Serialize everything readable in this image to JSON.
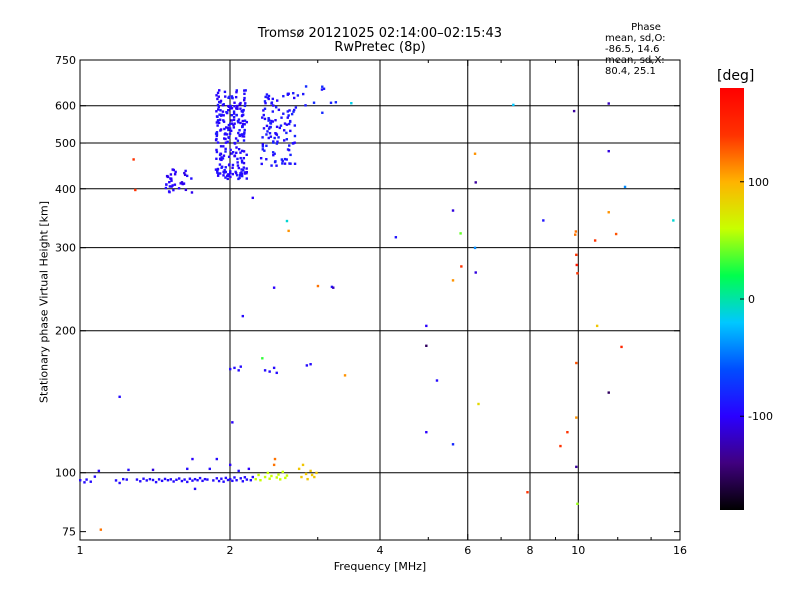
{
  "chart_data": {
    "type": "scatter",
    "title": "Tromsø 20121025 02:14:00–02:15:43",
    "subtitle": "RwPretec (8p)",
    "xlabel": "Frequency [MHz]",
    "ylabel": "Stationary phase Virtual Height [km]",
    "x_scale": "log",
    "y_scale": "log",
    "xlim": [
      1,
      16
    ],
    "ylim": [
      72,
      750
    ],
    "x_ticks": [
      1,
      2,
      4,
      6,
      8,
      10,
      16
    ],
    "x_minor_ticks": [
      3,
      5,
      7,
      9,
      12,
      14
    ],
    "y_ticks": [
      75,
      100,
      200,
      300,
      400,
      500,
      600,
      750
    ],
    "x_grid": [
      2,
      4,
      6,
      8,
      10
    ],
    "y_grid": [
      100,
      200,
      300,
      400,
      500,
      600
    ],
    "grid": true,
    "stats": {
      "heading": "Phase",
      "line1": "mean, sd,O: -86.5, 14.6",
      "line2": "mean, sd,X:  80.4, 25.1"
    },
    "colorbar": {
      "label": "[deg]",
      "range": [
        -180,
        180
      ],
      "ticks": [
        -100,
        0,
        100
      ],
      "colors": [
        "#000000",
        "#40007f",
        "#2a00ff",
        "#004dff",
        "#00c8ff",
        "#00ff4d",
        "#c8ff00",
        "#ffb300",
        "#ff3200",
        "#ff0000"
      ]
    },
    "points": [
      {
        "x": 1.0,
        "y": 96.5,
        "phase": -95
      },
      {
        "x": 1.02,
        "y": 95.5,
        "phase": -95
      },
      {
        "x": 1.03,
        "y": 96.8,
        "phase": -95
      },
      {
        "x": 1.05,
        "y": 95.8,
        "phase": -95
      },
      {
        "x": 1.07,
        "y": 98.2,
        "phase": -95
      },
      {
        "x": 1.09,
        "y": 101.0,
        "phase": -100
      },
      {
        "x": 1.1,
        "y": 75.8,
        "phase": 120
      },
      {
        "x": 1.18,
        "y": 96.4,
        "phase": -95
      },
      {
        "x": 1.2,
        "y": 95.2,
        "phase": -95
      },
      {
        "x": 1.22,
        "y": 97.0,
        "phase": -95
      },
      {
        "x": 1.24,
        "y": 96.8,
        "phase": -95
      },
      {
        "x": 1.2,
        "y": 145.0,
        "phase": -95
      },
      {
        "x": 1.25,
        "y": 101.5,
        "phase": -95
      },
      {
        "x": 1.28,
        "y": 462.0,
        "phase": 140
      },
      {
        "x": 1.29,
        "y": 398.0,
        "phase": 140
      },
      {
        "x": 1.3,
        "y": 96.8,
        "phase": -95
      },
      {
        "x": 1.32,
        "y": 96.0,
        "phase": -95
      },
      {
        "x": 1.34,
        "y": 97.2,
        "phase": -95
      },
      {
        "x": 1.36,
        "y": 96.4,
        "phase": -95
      },
      {
        "x": 1.38,
        "y": 97.0,
        "phase": -95
      },
      {
        "x": 1.4,
        "y": 96.6,
        "phase": -95
      },
      {
        "x": 1.4,
        "y": 101.5,
        "phase": -110
      },
      {
        "x": 1.42,
        "y": 95.6,
        "phase": -95
      },
      {
        "x": 1.44,
        "y": 96.9,
        "phase": -95
      },
      {
        "x": 1.46,
        "y": 96.2,
        "phase": -95
      },
      {
        "x": 1.48,
        "y": 97.1,
        "phase": -95
      },
      {
        "x": 1.5,
        "y": 96.5,
        "phase": -95
      },
      {
        "x": 1.52,
        "y": 96.9,
        "phase": -95
      },
      {
        "x": 1.54,
        "y": 95.9,
        "phase": -95
      },
      {
        "x": 1.56,
        "y": 96.7,
        "phase": -95
      },
      {
        "x": 1.58,
        "y": 97.3,
        "phase": -95
      },
      {
        "x": 1.6,
        "y": 96.1,
        "phase": -95
      },
      {
        "x": 1.62,
        "y": 96.8,
        "phase": -95
      },
      {
        "x": 1.64,
        "y": 95.7,
        "phase": -95
      },
      {
        "x": 1.64,
        "y": 102.0,
        "phase": -95
      },
      {
        "x": 1.66,
        "y": 97.2,
        "phase": -95
      },
      {
        "x": 1.68,
        "y": 96.3,
        "phase": -95
      },
      {
        "x": 1.68,
        "y": 107.0,
        "phase": -100
      },
      {
        "x": 1.7,
        "y": 97.0,
        "phase": -95
      },
      {
        "x": 1.7,
        "y": 92.5,
        "phase": -95
      },
      {
        "x": 1.72,
        "y": 96.5,
        "phase": -95
      },
      {
        "x": 1.74,
        "y": 97.5,
        "phase": -95
      },
      {
        "x": 1.76,
        "y": 96.2,
        "phase": -95
      },
      {
        "x": 1.78,
        "y": 97.0,
        "phase": -95
      },
      {
        "x": 1.8,
        "y": 96.8,
        "phase": -95
      },
      {
        "x": 1.82,
        "y": 102.0,
        "phase": -95
      },
      {
        "x": 1.85,
        "y": 96.4,
        "phase": -95
      },
      {
        "x": 1.88,
        "y": 97.4,
        "phase": -95
      },
      {
        "x": 1.88,
        "y": 107.0,
        "phase": -95
      },
      {
        "x": 1.9,
        "y": 96.1,
        "phase": -95
      },
      {
        "x": 1.92,
        "y": 97.2,
        "phase": -95
      },
      {
        "x": 1.94,
        "y": 95.8,
        "phase": -95
      },
      {
        "x": 1.96,
        "y": 97.6,
        "phase": -95
      },
      {
        "x": 1.98,
        "y": 96.6,
        "phase": -95
      },
      {
        "x": 2.0,
        "y": 97.0,
        "phase": -95
      },
      {
        "x": 2.0,
        "y": 104.0,
        "phase": -100
      },
      {
        "x": 2.02,
        "y": 96.2,
        "phase": -95
      },
      {
        "x": 2.04,
        "y": 97.8,
        "phase": -95
      },
      {
        "x": 2.06,
        "y": 96.5,
        "phase": -95
      },
      {
        "x": 2.08,
        "y": 101.0,
        "phase": -95
      },
      {
        "x": 2.1,
        "y": 97.4,
        "phase": -95
      },
      {
        "x": 2.12,
        "y": 96.0,
        "phase": -95
      },
      {
        "x": 2.14,
        "y": 97.9,
        "phase": -95
      },
      {
        "x": 2.16,
        "y": 96.8,
        "phase": -95
      },
      {
        "x": 2.18,
        "y": 102.0,
        "phase": -100
      },
      {
        "x": 2.2,
        "y": 96.5,
        "phase": -95
      },
      {
        "x": 2.22,
        "y": 98.0,
        "phase": -95
      },
      {
        "x": 2.02,
        "y": 128.0,
        "phase": -100
      },
      {
        "x": 2.0,
        "y": 166.0,
        "phase": -95
      },
      {
        "x": 2.04,
        "y": 167.0,
        "phase": -95
      },
      {
        "x": 2.08,
        "y": 165.0,
        "phase": -95
      },
      {
        "x": 2.1,
        "y": 168.0,
        "phase": -95
      },
      {
        "x": 2.12,
        "y": 215.0,
        "phase": -95
      },
      {
        "x": 2.22,
        "y": 383.0,
        "phase": -100
      },
      {
        "x": 2.25,
        "y": 97.0,
        "phase": 60
      },
      {
        "x": 2.28,
        "y": 99.0,
        "phase": 60
      },
      {
        "x": 2.3,
        "y": 96.5,
        "phase": 60
      },
      {
        "x": 2.32,
        "y": 175.0,
        "phase": 30
      },
      {
        "x": 2.35,
        "y": 98.0,
        "phase": 60
      },
      {
        "x": 2.38,
        "y": 100.0,
        "phase": 60
      },
      {
        "x": 2.4,
        "y": 97.2,
        "phase": 60
      },
      {
        "x": 2.42,
        "y": 98.5,
        "phase": 60
      },
      {
        "x": 2.45,
        "y": 104.0,
        "phase": 120
      },
      {
        "x": 2.46,
        "y": 107.0,
        "phase": 120
      },
      {
        "x": 2.48,
        "y": 97.8,
        "phase": 60
      },
      {
        "x": 2.5,
        "y": 99.2,
        "phase": 60
      },
      {
        "x": 2.52,
        "y": 96.9,
        "phase": 60
      },
      {
        "x": 2.55,
        "y": 100.5,
        "phase": 60
      },
      {
        "x": 2.58,
        "y": 97.6,
        "phase": 60
      },
      {
        "x": 2.6,
        "y": 98.7,
        "phase": 60
      },
      {
        "x": 2.35,
        "y": 165.0,
        "phase": -95
      },
      {
        "x": 2.4,
        "y": 164.0,
        "phase": -95
      },
      {
        "x": 2.45,
        "y": 167.0,
        "phase": -95
      },
      {
        "x": 2.48,
        "y": 163.0,
        "phase": -95
      },
      {
        "x": 2.45,
        "y": 247.0,
        "phase": -100
      },
      {
        "x": 2.6,
        "y": 342.0,
        "phase": -10
      },
      {
        "x": 2.62,
        "y": 326.0,
        "phase": 110
      },
      {
        "x": 2.75,
        "y": 102.0,
        "phase": 90
      },
      {
        "x": 2.78,
        "y": 98.0,
        "phase": 90
      },
      {
        "x": 2.8,
        "y": 104.0,
        "phase": 90
      },
      {
        "x": 2.84,
        "y": 99.5,
        "phase": 90
      },
      {
        "x": 2.86,
        "y": 97.0,
        "phase": 90
      },
      {
        "x": 2.9,
        "y": 101.0,
        "phase": 90
      },
      {
        "x": 2.92,
        "y": 99.0,
        "phase": 90
      },
      {
        "x": 2.95,
        "y": 98.0,
        "phase": 90
      },
      {
        "x": 2.98,
        "y": 100.0,
        "phase": 90
      },
      {
        "x": 2.85,
        "y": 169.0,
        "phase": -95
      },
      {
        "x": 2.9,
        "y": 170.0,
        "phase": -95
      },
      {
        "x": 3.0,
        "y": 249.0,
        "phase": 120
      },
      {
        "x": 3.2,
        "y": 248.0,
        "phase": -90
      },
      {
        "x": 3.22,
        "y": 247.0,
        "phase": -120
      },
      {
        "x": 3.4,
        "y": 161.0,
        "phase": 110
      },
      {
        "x": 3.5,
        "y": 608.0,
        "phase": -15
      },
      {
        "x": 4.3,
        "y": 316.0,
        "phase": -90
      },
      {
        "x": 4.95,
        "y": 205.0,
        "phase": -100
      },
      {
        "x": 4.95,
        "y": 186.0,
        "phase": -150
      },
      {
        "x": 4.95,
        "y": 122.0,
        "phase": -100
      },
      {
        "x": 5.2,
        "y": 157.0,
        "phase": -95
      },
      {
        "x": 5.6,
        "y": 360.0,
        "phase": -110
      },
      {
        "x": 5.6,
        "y": 256.0,
        "phase": 110
      },
      {
        "x": 5.6,
        "y": 115.0,
        "phase": -80
      },
      {
        "x": 5.8,
        "y": 322.0,
        "phase": 40
      },
      {
        "x": 5.82,
        "y": 274.0,
        "phase": 140
      },
      {
        "x": 6.2,
        "y": 475.0,
        "phase": 110
      },
      {
        "x": 6.22,
        "y": 413.0,
        "phase": -130
      },
      {
        "x": 6.22,
        "y": 266.0,
        "phase": -110
      },
      {
        "x": 6.3,
        "y": 140.0,
        "phase": 80
      },
      {
        "x": 6.2,
        "y": 300.0,
        "phase": -40
      },
      {
        "x": 7.4,
        "y": 603.0,
        "phase": -20
      },
      {
        "x": 8.5,
        "y": 343.0,
        "phase": -90
      },
      {
        "x": 7.9,
        "y": 91.0,
        "phase": 140
      },
      {
        "x": 9.5,
        "y": 122.0,
        "phase": 140
      },
      {
        "x": 9.2,
        "y": 114.0,
        "phase": 140
      },
      {
        "x": 9.8,
        "y": 585.0,
        "phase": -130
      },
      {
        "x": 9.85,
        "y": 320.0,
        "phase": 120
      },
      {
        "x": 9.88,
        "y": 325.0,
        "phase": 120
      },
      {
        "x": 9.9,
        "y": 290.0,
        "phase": 140
      },
      {
        "x": 9.92,
        "y": 276.0,
        "phase": 160
      },
      {
        "x": 9.95,
        "y": 265.0,
        "phase": 140
      },
      {
        "x": 9.9,
        "y": 171.0,
        "phase": 130
      },
      {
        "x": 9.9,
        "y": 131.0,
        "phase": 110
      },
      {
        "x": 9.9,
        "y": 103.0,
        "phase": -130
      },
      {
        "x": 9.95,
        "y": 86.0,
        "phase": 50
      },
      {
        "x": 10.8,
        "y": 311.0,
        "phase": 140
      },
      {
        "x": 10.9,
        "y": 205.0,
        "phase": 90
      },
      {
        "x": 11.5,
        "y": 607.0,
        "phase": -120
      },
      {
        "x": 11.5,
        "y": 481.0,
        "phase": -110
      },
      {
        "x": 11.5,
        "y": 357.0,
        "phase": 110
      },
      {
        "x": 11.5,
        "y": 148.0,
        "phase": -150
      },
      {
        "x": 11.9,
        "y": 321.0,
        "phase": 130
      },
      {
        "x": 12.2,
        "y": 185.0,
        "phase": 150
      },
      {
        "x": 12.4,
        "y": 404.0,
        "phase": -40
      },
      {
        "x": 15.5,
        "y": 343.0,
        "phase": -10
      }
    ],
    "clusters": [
      {
        "xmin": 1.48,
        "xmax": 1.68,
        "ymin": 392,
        "ymax": 440,
        "count": 36,
        "phase": -100,
        "seed": 11
      },
      {
        "xmin": 1.87,
        "xmax": 2.16,
        "ymin": 420,
        "ymax": 650,
        "count": 230,
        "phase": -95,
        "seed": 23
      },
      {
        "xmin": 2.3,
        "xmax": 2.7,
        "ymin": 445,
        "ymax": 640,
        "count": 110,
        "phase": -90,
        "seed": 37
      },
      {
        "xmin": 2.7,
        "xmax": 3.3,
        "ymin": 580,
        "ymax": 660,
        "count": 12,
        "phase": -85,
        "seed": 41
      }
    ]
  }
}
